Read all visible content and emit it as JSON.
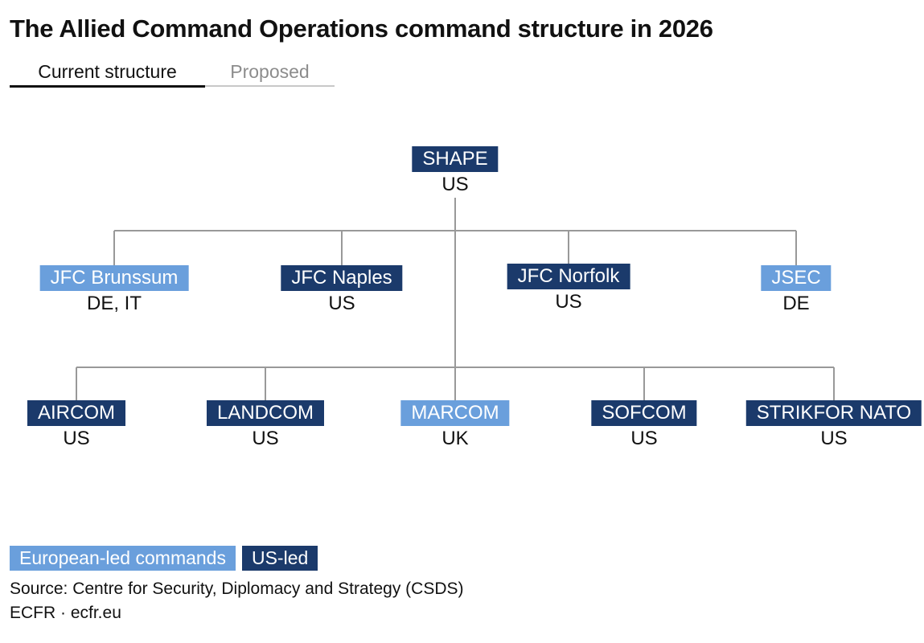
{
  "title": "The Allied Command Operations command structure in 2026",
  "tabs": [
    {
      "label": "Current structure",
      "active": true
    },
    {
      "label": "Proposed",
      "active": false
    }
  ],
  "colors": {
    "european": "#6a9fdc",
    "us": "#1b3a6b",
    "connector": "#999999"
  },
  "org": {
    "root": {
      "label": "SHAPE",
      "country": "US",
      "led": "us"
    },
    "level1": [
      {
        "label": "JFC Brunssum",
        "country": "DE, IT",
        "led": "european"
      },
      {
        "label": "JFC Naples",
        "country": "US",
        "led": "us"
      },
      {
        "label": "JFC Norfolk",
        "country": "US",
        "led": "us"
      },
      {
        "label": "JSEC",
        "country": "DE",
        "led": "european"
      }
    ],
    "level2": [
      {
        "label": "AIRCOM",
        "country": "US",
        "led": "us"
      },
      {
        "label": "LANDCOM",
        "country": "US",
        "led": "us"
      },
      {
        "label": "MARCOM",
        "country": "UK",
        "led": "european"
      },
      {
        "label": "SOFCOM",
        "country": "US",
        "led": "us"
      },
      {
        "label": "STRIKFOR NATO",
        "country": "US",
        "led": "us"
      }
    ]
  },
  "legend": {
    "european": "European-led commands",
    "us": "US-led"
  },
  "source": "Source: Centre for Security, Diplomacy and Strategy (CSDS)",
  "credit": "ECFR · ecfr.eu"
}
